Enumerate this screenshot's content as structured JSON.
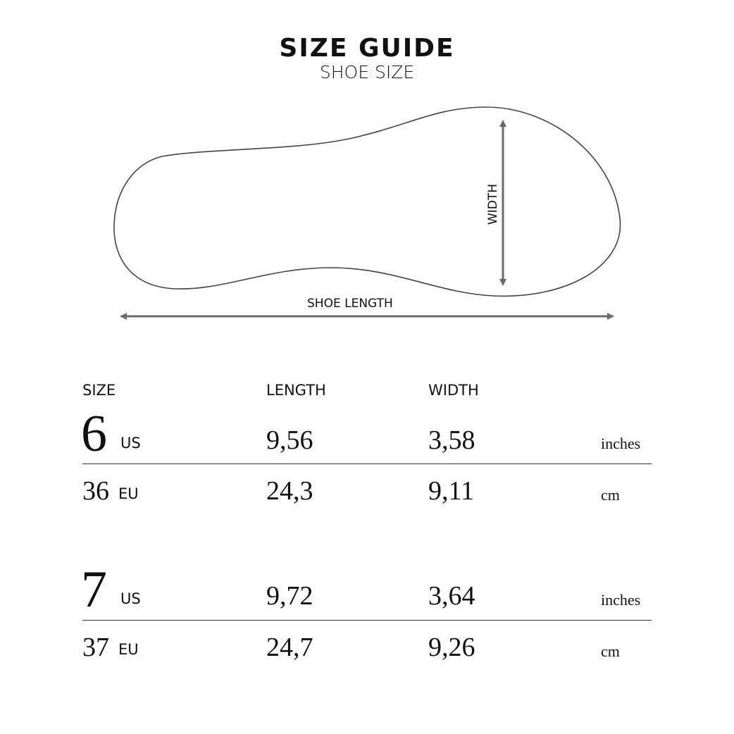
{
  "header": {
    "title": "SIZE GUIDE",
    "subtitle": "SHOE SIZE"
  },
  "diagram": {
    "width_label": "WIDTH",
    "length_label": "SHOE LENGTH",
    "arrow_color": "#6b6b6b"
  },
  "table": {
    "headers": {
      "size": "SIZE",
      "length": "LENGTH",
      "width": "WIDTH"
    },
    "groups": [
      {
        "us_size": "6",
        "us_label": "US",
        "length_in": "9,56",
        "width_in": "3,58",
        "unit_in": "inches",
        "eu_size": "36",
        "eu_label": "EU",
        "length_cm": "24,3",
        "width_cm": "9,11",
        "unit_cm": "cm"
      },
      {
        "us_size": "7",
        "us_label": "US",
        "length_in": "9,72",
        "width_in": "3,64",
        "unit_in": "inches",
        "eu_size": "37",
        "eu_label": "EU",
        "length_cm": "24,7",
        "width_cm": "9,26",
        "unit_cm": "cm"
      }
    ]
  }
}
